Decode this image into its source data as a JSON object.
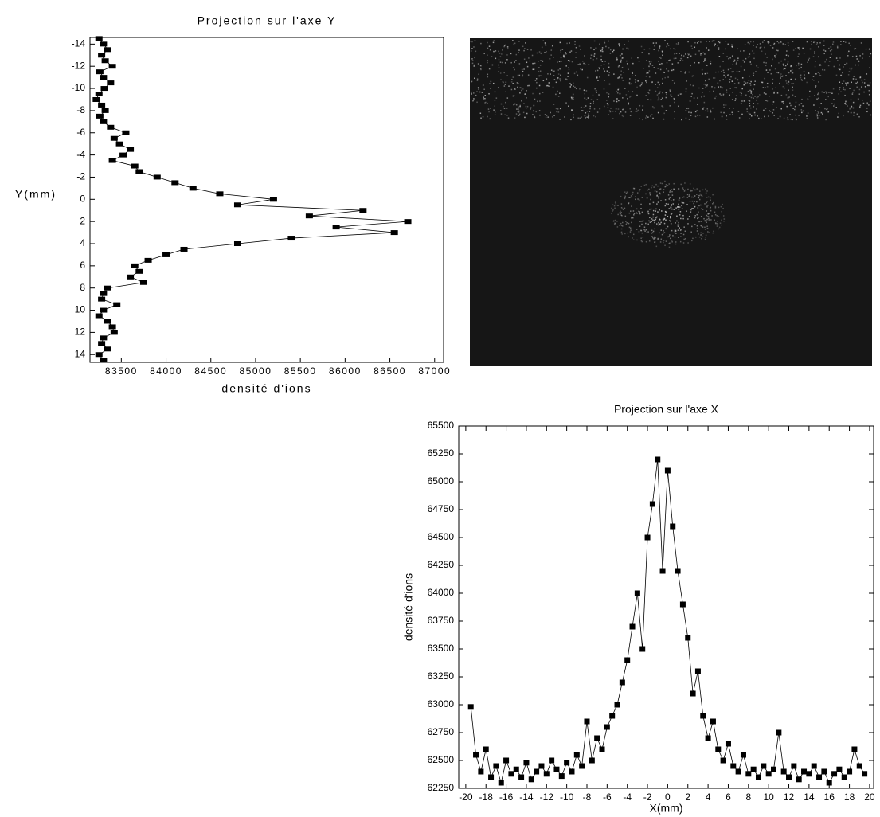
{
  "chart_data": [
    {
      "type": "line",
      "orientation": "horizontal",
      "title": "Projection sur l'axe Y",
      "x_label": "densité d'ions",
      "y_label": "Y(mm)",
      "y": [
        -14.5,
        -14,
        -13.5,
        -13,
        -12.5,
        -12,
        -11.5,
        -11,
        -10.5,
        -10,
        -9.5,
        -9,
        -8.5,
        -8,
        -7.5,
        -7,
        -6.5,
        -6,
        -5.5,
        -5,
        -4.5,
        -4,
        -3.5,
        -3,
        -2.5,
        -2,
        -1.5,
        -1,
        -0.5,
        0,
        0.5,
        1,
        1.5,
        2,
        2.5,
        3,
        3.5,
        4,
        4.5,
        5,
        5.5,
        6,
        6.5,
        7,
        7.5,
        8,
        8.5,
        9,
        9.5,
        10,
        10.5,
        11,
        11.5,
        12,
        12.5,
        13,
        13.5,
        14,
        14.5
      ],
      "values": [
        83250,
        83300,
        83350,
        83280,
        83320,
        83400,
        83260,
        83300,
        83380,
        83310,
        83250,
        83220,
        83280,
        83320,
        83260,
        83300,
        83380,
        83550,
        83420,
        83480,
        83600,
        83520,
        83400,
        83650,
        83700,
        83900,
        84100,
        84300,
        84600,
        85200,
        84800,
        86200,
        85600,
        86700,
        85900,
        86550,
        85400,
        84800,
        84200,
        84000,
        83800,
        83650,
        83700,
        83600,
        83750,
        83350,
        83300,
        83280,
        83450,
        83300,
        83250,
        83350,
        83400,
        83420,
        83300,
        83280,
        83350,
        83250,
        83300
      ],
      "color": "#000000",
      "marker": "square",
      "xlim": [
        83150,
        87100
      ],
      "xticks": [
        83500,
        84000,
        84500,
        85000,
        85500,
        86000,
        86500,
        87000
      ],
      "ylim": [
        -14.6,
        14.7
      ],
      "y_reversed": true,
      "yticks": [
        -14,
        -12,
        -10,
        -8,
        -6,
        -4,
        -2,
        0,
        2,
        4,
        6,
        8,
        10,
        12,
        14
      ]
    },
    {
      "type": "line",
      "title": "Projection sur l'axe X",
      "x_label": "X(mm)",
      "y_label": "densité d'ions",
      "x": [
        -19.5,
        -19,
        -18.5,
        -18,
        -17.5,
        -17,
        -16.5,
        -16,
        -15.5,
        -15,
        -14.5,
        -14,
        -13.5,
        -13,
        -12.5,
        -12,
        -11.5,
        -11,
        -10.5,
        -10,
        -9.5,
        -9,
        -8.5,
        -8,
        -7.5,
        -7,
        -6.5,
        -6,
        -5.5,
        -5,
        -4.5,
        -4,
        -3.5,
        -3,
        -2.5,
        -2,
        -1.5,
        -1,
        -0.5,
        0,
        0.5,
        1,
        1.5,
        2,
        2.5,
        3,
        3.5,
        4,
        4.5,
        5,
        5.5,
        6,
        6.5,
        7,
        7.5,
        8,
        8.5,
        9,
        9.5,
        10,
        10.5,
        11,
        11.5,
        12,
        12.5,
        13,
        13.5,
        14,
        14.5,
        15,
        15.5,
        16,
        16.5,
        17,
        17.5,
        18,
        18.5,
        19,
        19.5
      ],
      "values": [
        62980,
        62550,
        62400,
        62600,
        62350,
        62450,
        62300,
        62500,
        62380,
        62420,
        62350,
        62480,
        62330,
        62400,
        62450,
        62380,
        62500,
        62420,
        62360,
        62480,
        62400,
        62550,
        62450,
        62850,
        62500,
        62700,
        62600,
        62800,
        62900,
        63000,
        63200,
        63400,
        63700,
        64000,
        63500,
        64500,
        64800,
        65200,
        64200,
        65100,
        64600,
        64200,
        63900,
        63600,
        63100,
        63300,
        62900,
        62700,
        62850,
        62600,
        62500,
        62650,
        62450,
        62400,
        62550,
        62380,
        62420,
        62350,
        62450,
        62380,
        62420,
        62750,
        62400,
        62350,
        62450,
        62330,
        62400,
        62380,
        62450,
        62350,
        62400,
        62300,
        62380,
        62420,
        62350,
        62400,
        62600,
        62450,
        62380
      ],
      "color": "#000000",
      "marker": "square",
      "xlim": [
        -20.7,
        20.4
      ],
      "xticks": [
        -20,
        -18,
        -16,
        -14,
        -12,
        -10,
        -8,
        -6,
        -4,
        -2,
        0,
        2,
        4,
        6,
        8,
        10,
        12,
        14,
        16,
        18,
        20
      ],
      "ylim": [
        62250,
        65500
      ],
      "yticks": [
        62250,
        62500,
        62750,
        63000,
        63250,
        63500,
        63750,
        64000,
        64250,
        64500,
        64750,
        65000,
        65250,
        65500
      ]
    }
  ]
}
